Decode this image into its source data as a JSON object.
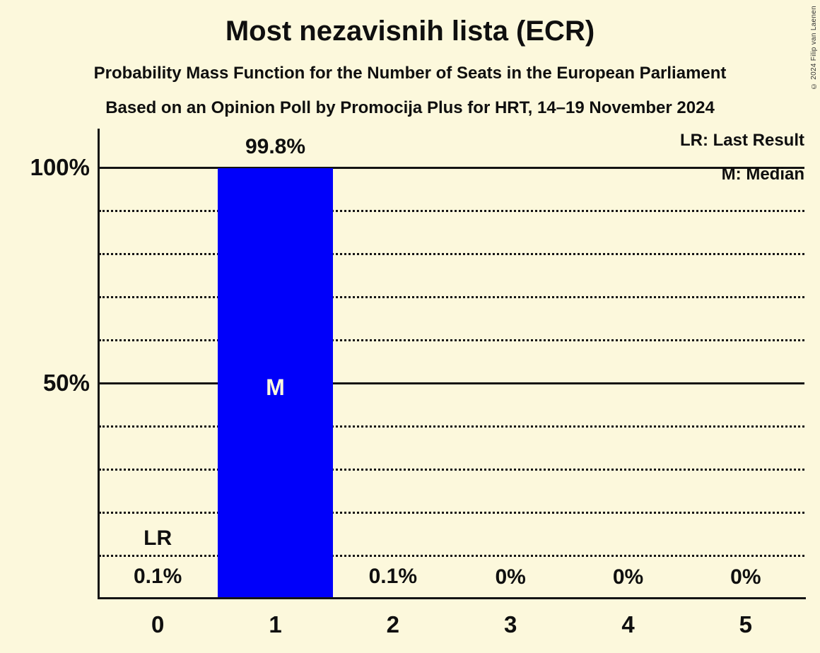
{
  "page": {
    "background_color": "#fcf8dc",
    "copyright": "© 2024 Filip van Laenen"
  },
  "header": {
    "title": "Most nezavisnih lista (ECR)",
    "subtitle": "Probability Mass Function for the Number of Seats in the European Parliament",
    "poll_line": "Based on an Opinion Poll by Promocija Plus for HRT, 14–19 November 2024"
  },
  "legend": {
    "last_result": "LR: Last Result",
    "median": "M: Median"
  },
  "chart_data": {
    "type": "bar",
    "title": "Most nezavisnih lista (ECR)",
    "xlabel": "",
    "ylabel": "",
    "ylim": [
      0,
      100
    ],
    "categories": [
      "0",
      "1",
      "2",
      "3",
      "4",
      "5"
    ],
    "values": [
      0.1,
      99.8,
      0.1,
      0,
      0,
      0
    ],
    "value_labels": [
      "0.1%",
      "99.8%",
      "0.1%",
      "0%",
      "0%",
      "0%"
    ],
    "yticks": [
      {
        "value": 100,
        "label": "100%"
      },
      {
        "value": 50,
        "label": "50%"
      }
    ],
    "solid_gridlines": [
      100,
      50
    ],
    "dotted_gridlines": [
      90,
      80,
      70,
      60,
      40,
      30,
      20,
      10
    ],
    "grid_on": true,
    "legend_position": "top-right",
    "legend_entries": [
      "LR: Last Result",
      "M: Median"
    ],
    "median_category": "1",
    "median_marker": "M",
    "last_result_category": "0",
    "last_result_marker": "LR",
    "bar_color": "#0000fa",
    "axis_color": "#141414"
  }
}
